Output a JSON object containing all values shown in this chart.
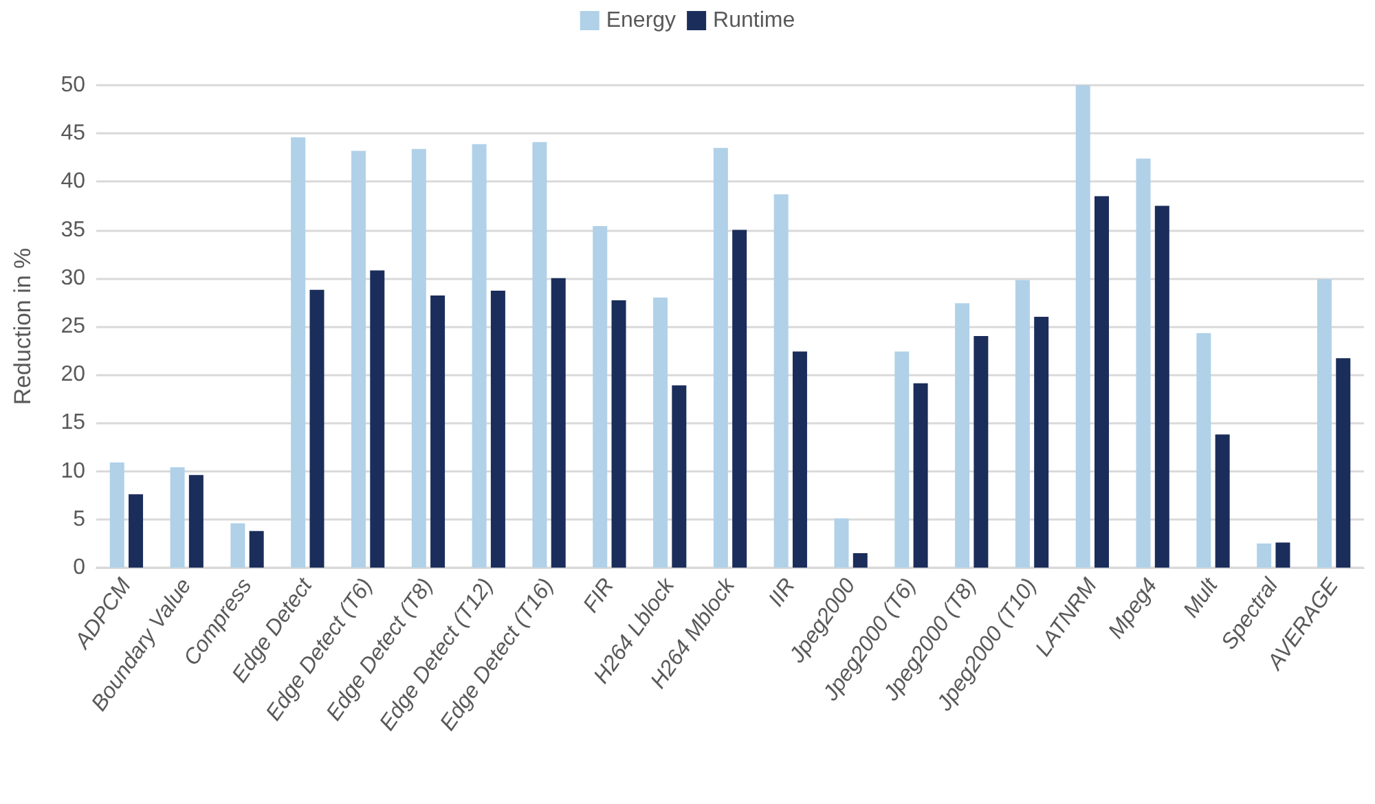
{
  "chart_data": {
    "type": "bar",
    "ylabel": "Reduction in %",
    "categories": [
      "ADPCM",
      "Boundary Value",
      "Compress",
      "Edge Detect",
      "Edge Detect (T6)",
      "Edge Detect (T8)",
      "Edge Detect (T12)",
      "Edge Detect (T16)",
      "FIR",
      "H264 Lblock",
      "H264 Mblock",
      "IIR",
      "Jpeg2000",
      "Jpeg2000 (T6)",
      "Jpeg2000 (T8)",
      "Jpeg2000 (T10)",
      "LATNRM",
      "Mpeg4",
      "Mult",
      "Spectral",
      "AVERAGE"
    ],
    "series": [
      {
        "name": "Energy",
        "color": "#b0d1e8",
        "values": [
          10.9,
          10.4,
          4.6,
          44.6,
          43.2,
          43.4,
          43.9,
          44.1,
          35.4,
          28.0,
          43.5,
          38.7,
          5.1,
          22.4,
          27.4,
          29.8,
          50.0,
          42.4,
          24.3,
          2.5,
          29.9
        ]
      },
      {
        "name": "Runtime",
        "color": "#1b2d5a",
        "values": [
          7.6,
          9.6,
          3.8,
          28.8,
          30.8,
          28.2,
          28.7,
          30.0,
          27.7,
          18.9,
          35.0,
          22.4,
          1.5,
          19.1,
          24.0,
          26.0,
          38.5,
          37.5,
          13.8,
          2.6,
          21.7
        ]
      }
    ],
    "ylim": [
      0,
      50
    ],
    "yticks": [
      0,
      5,
      10,
      15,
      20,
      25,
      30,
      35,
      40,
      45,
      50
    ],
    "grid": "y",
    "legend": "top"
  }
}
